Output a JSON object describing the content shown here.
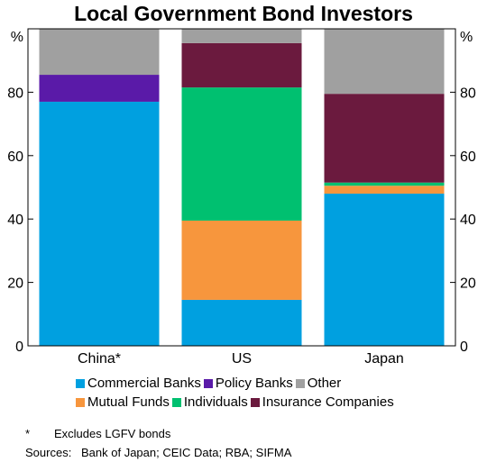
{
  "chart_data": {
    "type": "bar",
    "stacked": true,
    "title": "Local Government Bond Investors",
    "ylabel_left": "%",
    "ylabel_right": "%",
    "ylim": [
      0,
      100
    ],
    "yticks": [
      0,
      20,
      40,
      60,
      80
    ],
    "categories": [
      "China*",
      "US",
      "Japan"
    ],
    "series": [
      {
        "name": "Commercial Banks",
        "color": "#00a0e0",
        "values": [
          77,
          14.5,
          48
        ]
      },
      {
        "name": "Policy Banks",
        "color": "#5a1aa8",
        "values": [
          8.5,
          0,
          0
        ]
      },
      {
        "name": "Mutual Funds",
        "color": "#f7963d",
        "values": [
          0,
          25,
          2.5
        ]
      },
      {
        "name": "Individuals",
        "color": "#00c070",
        "values": [
          0,
          42,
          1
        ]
      },
      {
        "name": "Insurance Companies",
        "color": "#6b1a3e",
        "values": [
          0,
          14,
          28
        ]
      },
      {
        "name": "Other",
        "color": "#a0a0a0",
        "values": [
          14.5,
          4.5,
          20.5
        ]
      }
    ],
    "legend_rows": [
      [
        "Commercial Banks",
        "Policy Banks",
        "Other"
      ],
      [
        "Mutual Funds",
        "Individuals",
        "Insurance Companies"
      ]
    ],
    "legend_position": "bottom",
    "grid": false
  },
  "notes": {
    "footnote_mark": "*",
    "footnote_text": "Excludes LGFV bonds",
    "sources_label": "Sources:",
    "sources_text": "Bank of Japan; CEIC Data; RBA; SIFMA"
  }
}
